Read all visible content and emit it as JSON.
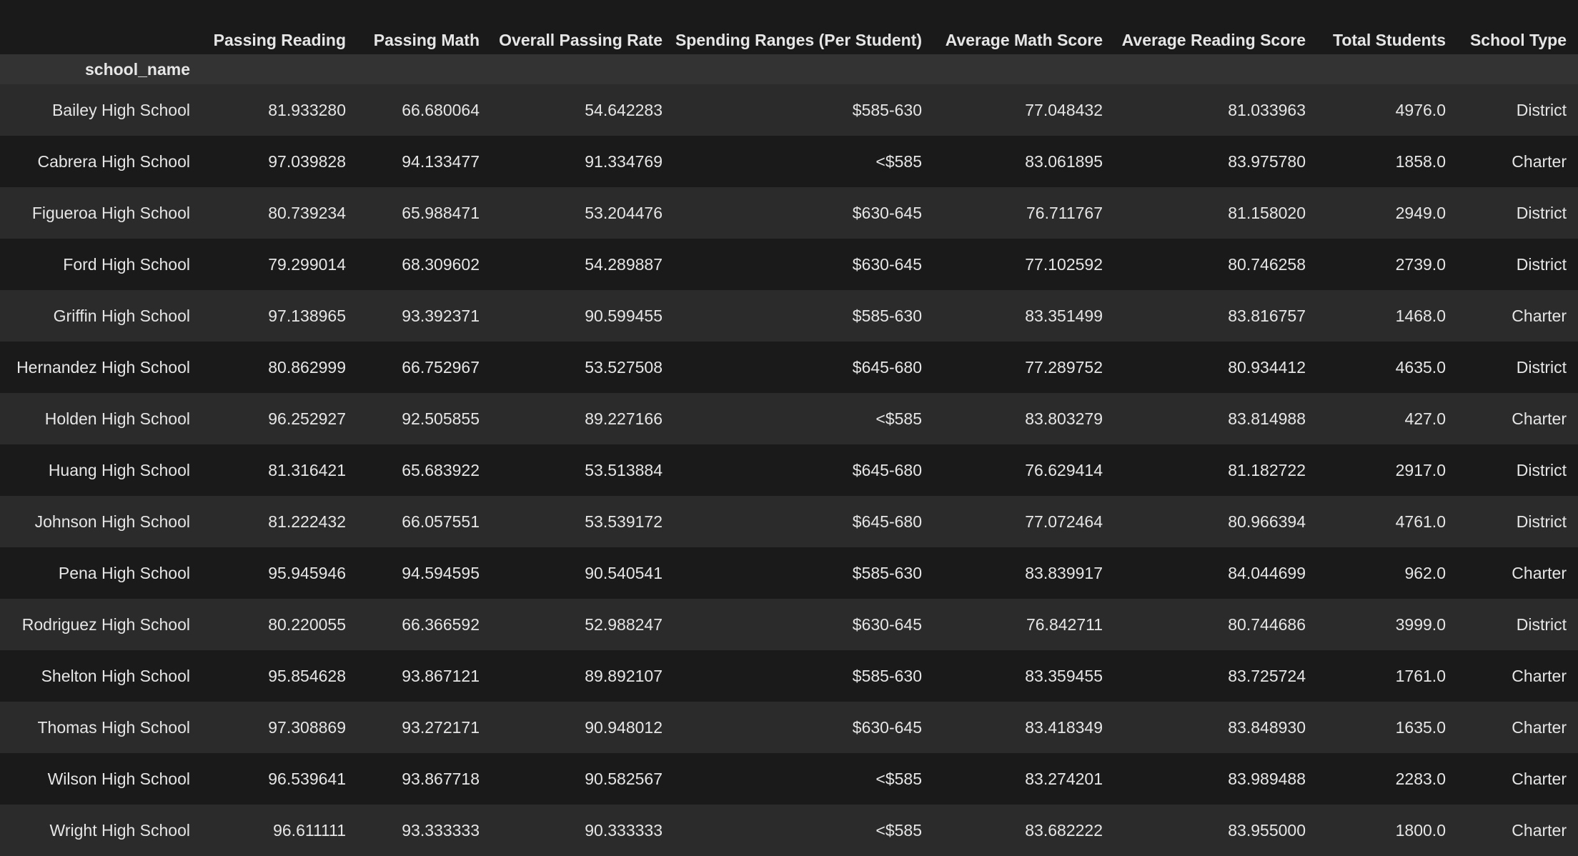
{
  "table": {
    "columns": [
      "Passing Reading",
      "Passing Math",
      "Overall Passing Rate",
      "Spending Ranges (Per Student)",
      "Average Math Score",
      "Average Reading Score",
      "Total Students",
      "School Type"
    ],
    "index_name": "school_name",
    "rows": [
      {
        "name": "Bailey High School",
        "cells": [
          "81.933280",
          "66.680064",
          "54.642283",
          "$585-630",
          "77.048432",
          "81.033963",
          "4976.0",
          "District"
        ]
      },
      {
        "name": "Cabrera High School",
        "cells": [
          "97.039828",
          "94.133477",
          "91.334769",
          "<$585",
          "83.061895",
          "83.975780",
          "1858.0",
          "Charter"
        ]
      },
      {
        "name": "Figueroa High School",
        "cells": [
          "80.739234",
          "65.988471",
          "53.204476",
          "$630-645",
          "76.711767",
          "81.158020",
          "2949.0",
          "District"
        ]
      },
      {
        "name": "Ford High School",
        "cells": [
          "79.299014",
          "68.309602",
          "54.289887",
          "$630-645",
          "77.102592",
          "80.746258",
          "2739.0",
          "District"
        ]
      },
      {
        "name": "Griffin High School",
        "cells": [
          "97.138965",
          "93.392371",
          "90.599455",
          "$585-630",
          "83.351499",
          "83.816757",
          "1468.0",
          "Charter"
        ]
      },
      {
        "name": "Hernandez High School",
        "cells": [
          "80.862999",
          "66.752967",
          "53.527508",
          "$645-680",
          "77.289752",
          "80.934412",
          "4635.0",
          "District"
        ]
      },
      {
        "name": "Holden High School",
        "cells": [
          "96.252927",
          "92.505855",
          "89.227166",
          "<$585",
          "83.803279",
          "83.814988",
          "427.0",
          "Charter"
        ]
      },
      {
        "name": "Huang High School",
        "cells": [
          "81.316421",
          "65.683922",
          "53.513884",
          "$645-680",
          "76.629414",
          "81.182722",
          "2917.0",
          "District"
        ]
      },
      {
        "name": "Johnson High School",
        "cells": [
          "81.222432",
          "66.057551",
          "53.539172",
          "$645-680",
          "77.072464",
          "80.966394",
          "4761.0",
          "District"
        ]
      },
      {
        "name": "Pena High School",
        "cells": [
          "95.945946",
          "94.594595",
          "90.540541",
          "$585-630",
          "83.839917",
          "84.044699",
          "962.0",
          "Charter"
        ]
      },
      {
        "name": "Rodriguez High School",
        "cells": [
          "80.220055",
          "66.366592",
          "52.988247",
          "$630-645",
          "76.842711",
          "80.744686",
          "3999.0",
          "District"
        ]
      },
      {
        "name": "Shelton High School",
        "cells": [
          "95.854628",
          "93.867121",
          "89.892107",
          "$585-630",
          "83.359455",
          "83.725724",
          "1761.0",
          "Charter"
        ]
      },
      {
        "name": "Thomas High School",
        "cells": [
          "97.308869",
          "93.272171",
          "90.948012",
          "$630-645",
          "83.418349",
          "83.848930",
          "1635.0",
          "Charter"
        ]
      },
      {
        "name": "Wilson High School",
        "cells": [
          "96.539641",
          "93.867718",
          "90.582567",
          "<$585",
          "83.274201",
          "83.989488",
          "2283.0",
          "Charter"
        ]
      },
      {
        "name": "Wright High School",
        "cells": [
          "96.611111",
          "93.333333",
          "90.333333",
          "<$585",
          "83.682222",
          "83.955000",
          "1800.0",
          "Charter"
        ]
      }
    ]
  }
}
